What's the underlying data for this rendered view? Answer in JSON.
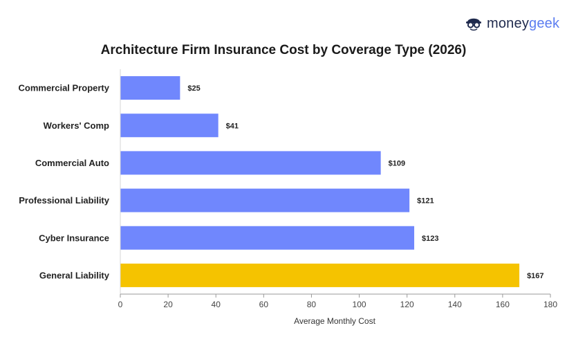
{
  "brand": {
    "part1": "money",
    "part2": "geek",
    "icon": "glasses-face-icon"
  },
  "colors": {
    "default_bar": "#7087fd",
    "highlight_bar": "#f5c300",
    "brand_dark": "#1f2a4d",
    "brand_accent": "#5b7cf0"
  },
  "chart_data": {
    "type": "bar",
    "orientation": "horizontal",
    "title": "Architecture Firm Insurance Cost by Coverage Type (2026)",
    "xlabel": "Average Monthly Cost",
    "ylabel": "",
    "categories": [
      "Commercial Property",
      "Workers' Comp",
      "Commercial Auto",
      "Professional Liability",
      "Cyber Insurance",
      "General Liability"
    ],
    "values": [
      25,
      41,
      109,
      121,
      123,
      167
    ],
    "value_labels": [
      "$25",
      "$41",
      "$109",
      "$121",
      "$123",
      "$167"
    ],
    "highlight": "General Liability",
    "xlim": [
      0,
      180
    ],
    "xticks": [
      0,
      20,
      40,
      60,
      80,
      100,
      120,
      140,
      160,
      180
    ],
    "grid": false
  }
}
